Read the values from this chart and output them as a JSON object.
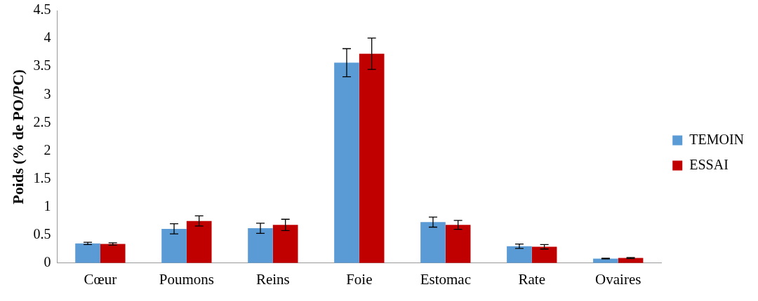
{
  "chart_data": {
    "type": "bar",
    "ylabel": "Poids (% de PO/PC)",
    "categories": [
      "Cœur",
      "Poumons",
      "Reins",
      "Foie",
      "Estomac",
      "Rate",
      "Ovaires"
    ],
    "series": [
      {
        "name": "TEMOIN",
        "color": "#5b9bd5",
        "values": [
          0.35,
          0.61,
          0.62,
          3.57,
          0.73,
          0.3,
          0.08
        ],
        "errors": [
          0.02,
          0.09,
          0.09,
          0.25,
          0.09,
          0.04,
          0.005
        ]
      },
      {
        "name": "ESSAI",
        "color": "#c00000",
        "values": [
          0.34,
          0.75,
          0.68,
          3.73,
          0.68,
          0.29,
          0.09
        ],
        "errors": [
          0.02,
          0.09,
          0.1,
          0.28,
          0.08,
          0.04,
          0.01
        ]
      }
    ],
    "ylim": [
      0,
      4.5
    ],
    "yticks": [
      0,
      0.5,
      1,
      1.5,
      2,
      2.5,
      3,
      3.5,
      4,
      4.5
    ],
    "grid": false,
    "legend": "right"
  }
}
